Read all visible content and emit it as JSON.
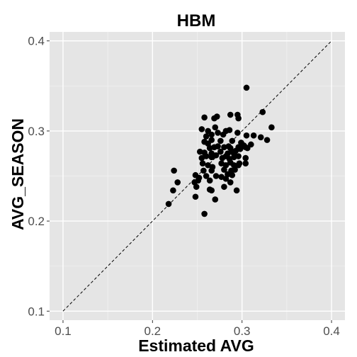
{
  "chart_data": {
    "type": "scatter",
    "title": "HBM",
    "xlabel": "Estimated AVG",
    "ylabel": "AVG_SEASON",
    "xlim": [
      0.085,
      0.415
    ],
    "ylim": [
      0.09,
      0.41
    ],
    "xticks": [
      "0.1",
      "0.2",
      "0.3",
      "0.4"
    ],
    "yticks": [
      "0.1",
      "0.2",
      "0.3",
      "0.4"
    ],
    "grid": true,
    "reference_line": "y = x (dashed)",
    "colors": {
      "panel": "#e5e5e5",
      "grid": "#ffffff",
      "point": "#000000",
      "ink": "#000000"
    },
    "points": [
      [
        0.305,
        0.348
      ],
      [
        0.258,
        0.315
      ],
      [
        0.269,
        0.314
      ],
      [
        0.272,
        0.316
      ],
      [
        0.287,
        0.318
      ],
      [
        0.295,
        0.318
      ],
      [
        0.296,
        0.314
      ],
      [
        0.323,
        0.321
      ],
      [
        0.255,
        0.302
      ],
      [
        0.262,
        0.3
      ],
      [
        0.27,
        0.304
      ],
      [
        0.282,
        0.3
      ],
      [
        0.286,
        0.301
      ],
      [
        0.333,
        0.304
      ],
      [
        0.26,
        0.294
      ],
      [
        0.266,
        0.296
      ],
      [
        0.273,
        0.298
      ],
      [
        0.279,
        0.296
      ],
      [
        0.295,
        0.298
      ],
      [
        0.305,
        0.295
      ],
      [
        0.313,
        0.295
      ],
      [
        0.321,
        0.293
      ],
      [
        0.328,
        0.29
      ],
      [
        0.258,
        0.288
      ],
      [
        0.262,
        0.286
      ],
      [
        0.266,
        0.29
      ],
      [
        0.276,
        0.289
      ],
      [
        0.289,
        0.289
      ],
      [
        0.299,
        0.287
      ],
      [
        0.302,
        0.284
      ],
      [
        0.31,
        0.285
      ],
      [
        0.264,
        0.281
      ],
      [
        0.269,
        0.282
      ],
      [
        0.273,
        0.283
      ],
      [
        0.285,
        0.283
      ],
      [
        0.287,
        0.281
      ],
      [
        0.296,
        0.282
      ],
      [
        0.298,
        0.28
      ],
      [
        0.304,
        0.282
      ],
      [
        0.306,
        0.281
      ],
      [
        0.28,
        0.282
      ],
      [
        0.253,
        0.277
      ],
      [
        0.258,
        0.276
      ],
      [
        0.266,
        0.275
      ],
      [
        0.276,
        0.277
      ],
      [
        0.284,
        0.275
      ],
      [
        0.289,
        0.277
      ],
      [
        0.291,
        0.275
      ],
      [
        0.293,
        0.278
      ],
      [
        0.255,
        0.27
      ],
      [
        0.26,
        0.272
      ],
      [
        0.266,
        0.271
      ],
      [
        0.271,
        0.273
      ],
      [
        0.278,
        0.27
      ],
      [
        0.282,
        0.272
      ],
      [
        0.286,
        0.269
      ],
      [
        0.291,
        0.271
      ],
      [
        0.296,
        0.272
      ],
      [
        0.304,
        0.27
      ],
      [
        0.256,
        0.264
      ],
      [
        0.262,
        0.262
      ],
      [
        0.267,
        0.26
      ],
      [
        0.277,
        0.264
      ],
      [
        0.282,
        0.262
      ],
      [
        0.287,
        0.265
      ],
      [
        0.291,
        0.262
      ],
      [
        0.297,
        0.264
      ],
      [
        0.304,
        0.264
      ],
      [
        0.296,
        0.262
      ],
      [
        0.257,
        0.256
      ],
      [
        0.266,
        0.256
      ],
      [
        0.28,
        0.257
      ],
      [
        0.288,
        0.256
      ],
      [
        0.292,
        0.257
      ],
      [
        0.248,
        0.251
      ],
      [
        0.252,
        0.248
      ],
      [
        0.26,
        0.25
      ],
      [
        0.271,
        0.25
      ],
      [
        0.277,
        0.249
      ],
      [
        0.284,
        0.252
      ],
      [
        0.289,
        0.251
      ],
      [
        0.224,
        0.256
      ],
      [
        0.228,
        0.243
      ],
      [
        0.247,
        0.243
      ],
      [
        0.251,
        0.245
      ],
      [
        0.264,
        0.245
      ],
      [
        0.282,
        0.247
      ],
      [
        0.287,
        0.243
      ],
      [
        0.223,
        0.234
      ],
      [
        0.249,
        0.238
      ],
      [
        0.264,
        0.235
      ],
      [
        0.266,
        0.234
      ],
      [
        0.28,
        0.238
      ],
      [
        0.294,
        0.234
      ],
      [
        0.248,
        0.227
      ],
      [
        0.27,
        0.224
      ],
      [
        0.218,
        0.219
      ],
      [
        0.258,
        0.208
      ]
    ]
  }
}
